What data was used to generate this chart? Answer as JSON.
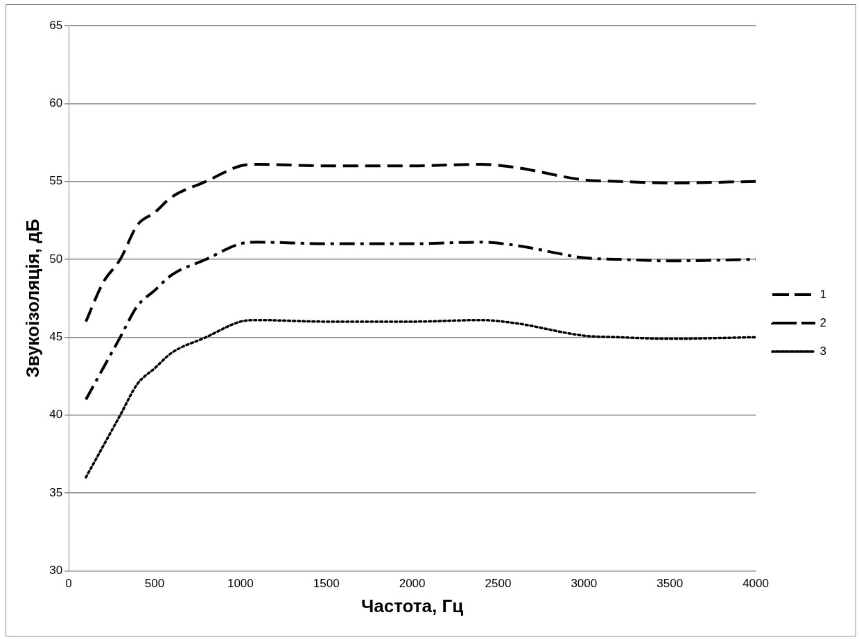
{
  "chart_data": {
    "type": "line",
    "xlabel": "Частота, Гц",
    "ylabel": "Звукоізоляція, дБ",
    "xlim": [
      0,
      4000
    ],
    "xticks": [
      0,
      500,
      1000,
      1500,
      2000,
      2500,
      3000,
      3500,
      4000
    ],
    "ylim": [
      30,
      65
    ],
    "yticks": [
      30,
      35,
      40,
      45,
      50,
      55,
      60,
      65
    ],
    "grid": "y",
    "legend": "right",
    "marker": "none",
    "series": [
      {
        "name": "1",
        "color": "#000000",
        "line_style": "dashed",
        "x": [
          100,
          200,
          300,
          400,
          500,
          600,
          800,
          1000,
          1100,
          1500,
          2000,
          2400,
          2600,
          3000,
          3200,
          3500,
          4000
        ],
        "values": [
          46,
          48.5,
          50,
          52.2,
          53,
          54,
          55,
          56,
          56.1,
          56,
          56,
          56.1,
          55.9,
          55.1,
          55,
          54.9,
          55
        ]
      },
      {
        "name": "2",
        "color": "#000000",
        "line_style": "dashdot",
        "x": [
          100,
          200,
          300,
          400,
          500,
          600,
          800,
          1000,
          1100,
          1500,
          2000,
          2400,
          2600,
          3000,
          3200,
          3500,
          4000
        ],
        "values": [
          41,
          43,
          45,
          47,
          48,
          49,
          50,
          51,
          51.1,
          51,
          51,
          51.1,
          50.9,
          50.1,
          50,
          49.9,
          50
        ]
      },
      {
        "name": "3",
        "color": "#000000",
        "line_style": "dotted",
        "x": [
          100,
          150,
          300,
          400,
          500,
          600,
          800,
          1000,
          1100,
          1500,
          2000,
          2400,
          2600,
          3000,
          3200,
          3500,
          4000
        ],
        "values": [
          36,
          37,
          40,
          42,
          43,
          44,
          45,
          46,
          46.1,
          46,
          46,
          46.1,
          45.9,
          45.1,
          45,
          44.9,
          45
        ]
      }
    ]
  }
}
